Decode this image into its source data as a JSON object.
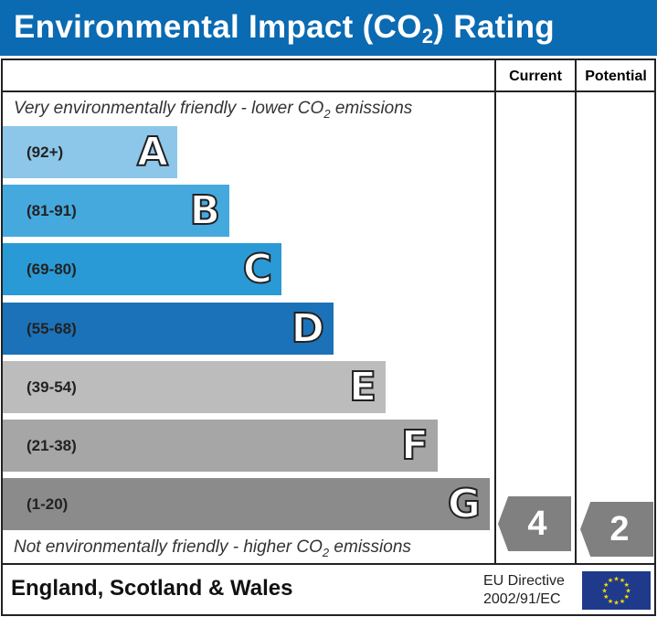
{
  "title": {
    "main": "Environmental Impact (CO",
    "sub": "2",
    "end": ") Rating"
  },
  "columns": {
    "current": "Current",
    "potential": "Potential"
  },
  "top_note": {
    "a": "Very environmentally friendly - lower CO",
    "sub": "2",
    "b": " emissions"
  },
  "bottom_note": {
    "a": "Not environmentally friendly - higher CO",
    "sub": "2",
    "b": " emissions"
  },
  "bands": [
    {
      "range": "(92+)",
      "letter": "A",
      "color": "#8cc7e9"
    },
    {
      "range": "(81-91)",
      "letter": "B",
      "color": "#45a9de"
    },
    {
      "range": "(69-80)",
      "letter": "C",
      "color": "#2a9ad6"
    },
    {
      "range": "(55-68)",
      "letter": "D",
      "color": "#1c72b8"
    },
    {
      "range": "(39-54)",
      "letter": "E",
      "color": "#bcbcbc"
    },
    {
      "range": "(21-38)",
      "letter": "F",
      "color": "#a6a6a6"
    },
    {
      "range": "(1-20)",
      "letter": "G",
      "color": "#8b8b8b"
    }
  ],
  "current": {
    "value": "4",
    "band": "G"
  },
  "potential": {
    "value": "2",
    "band": "G"
  },
  "footer": {
    "region": "England, Scotland & Wales",
    "directive_line1": "EU Directive",
    "directive_line2": "2002/91/EC"
  }
}
